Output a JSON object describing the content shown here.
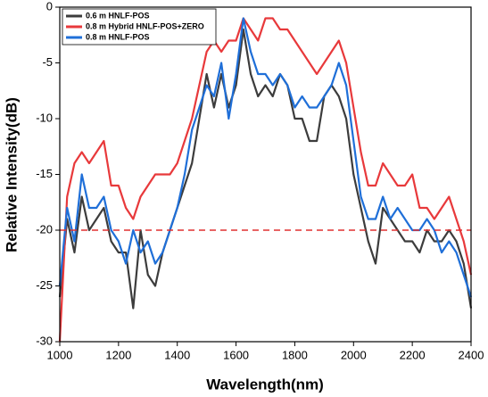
{
  "chart_data": {
    "type": "line",
    "xlabel": "Wavelength(nm)",
    "ylabel": "Relative Intensity(dB)",
    "x": [
      1000,
      1025,
      1050,
      1075,
      1100,
      1125,
      1150,
      1175,
      1200,
      1225,
      1250,
      1275,
      1300,
      1325,
      1350,
      1375,
      1400,
      1425,
      1450,
      1475,
      1500,
      1525,
      1550,
      1575,
      1600,
      1625,
      1650,
      1675,
      1700,
      1725,
      1750,
      1775,
      1800,
      1825,
      1850,
      1875,
      1900,
      1925,
      1950,
      1975,
      2000,
      2025,
      2050,
      2075,
      2100,
      2125,
      2150,
      2175,
      2200,
      2225,
      2250,
      2275,
      2300,
      2325,
      2350,
      2375,
      2400
    ],
    "series": [
      {
        "name": "0.6 m HNLF-POS",
        "color": "#3c3c3c",
        "values": [
          -26,
          -19,
          -22,
          -17,
          -20,
          -19,
          -18,
          -21,
          -22,
          -22,
          -27,
          -20,
          -24,
          -25,
          -22,
          -20,
          -18,
          -16,
          -14,
          -10,
          -6,
          -9,
          -6,
          -9,
          -7,
          -2,
          -6,
          -8,
          -7,
          -8,
          -6,
          -7,
          -10,
          -10,
          -12,
          -12,
          -8,
          -7,
          -8,
          -10,
          -15,
          -18,
          -21,
          -23,
          -18,
          -19,
          -20,
          -21,
          -21,
          -22,
          -20,
          -21,
          -21,
          -20,
          -21,
          -23,
          -27
        ]
      },
      {
        "name": "0.8 m Hybrid HNLF-POS+ZERO",
        "color": "#e8393b",
        "values": [
          -30,
          -17,
          -14,
          -13,
          -14,
          -13,
          -12,
          -16,
          -16,
          -18,
          -19,
          -17,
          -16,
          -15,
          -15,
          -15,
          -14,
          -12,
          -10,
          -7,
          -4,
          -3,
          -4,
          -3,
          -3,
          -1,
          -2,
          -3,
          -1,
          -1,
          -2,
          -2,
          -3,
          -4,
          -5,
          -6,
          -5,
          -4,
          -3,
          -5,
          -9,
          -13,
          -16,
          -16,
          -14,
          -15,
          -16,
          -16,
          -15,
          -18,
          -18,
          -19,
          -18,
          -17,
          -19,
          -21,
          -24
        ]
      },
      {
        "name": "0.8 m HNLF-POS",
        "color": "#1f6fd8",
        "values": [
          -25,
          -18,
          -21,
          -15,
          -18,
          -18,
          -17,
          -20,
          -21,
          -23,
          -20,
          -22,
          -21,
          -23,
          -22,
          -20,
          -18,
          -15,
          -11,
          -9,
          -7,
          -8,
          -5,
          -10,
          -6,
          -1,
          -4,
          -6,
          -6,
          -7,
          -6,
          -7,
          -9,
          -8,
          -9,
          -9,
          -8,
          -7,
          -5,
          -7,
          -12,
          -17,
          -19,
          -19,
          -17,
          -19,
          -18,
          -19,
          -20,
          -20,
          -19,
          -20,
          -22,
          -21,
          -22,
          -24,
          -26
        ]
      }
    ],
    "xlim": [
      1000,
      2400
    ],
    "xticks": [
      1000,
      1200,
      1400,
      1600,
      1800,
      2000,
      2200,
      2400
    ],
    "ylim": [
      -30,
      0
    ],
    "yticks": [
      -30,
      -25,
      -20,
      -15,
      -10,
      -5,
      0
    ],
    "reference_line": {
      "value": -20,
      "color": "#e03030",
      "dashed": true
    },
    "legend": "upper left"
  }
}
